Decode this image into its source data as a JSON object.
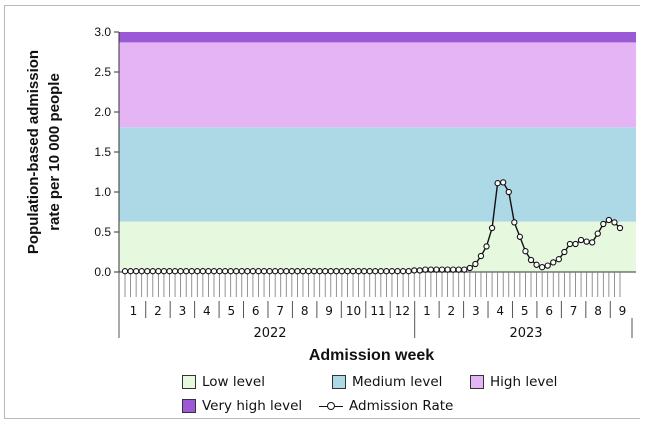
{
  "chart_data": {
    "type": "line",
    "title": "",
    "ylabel": "Population-based admission rate per 10 000 people",
    "xlabel": "Admission week",
    "ylim": [
      0,
      3.0
    ],
    "yticks": [
      "0.0",
      "0.5",
      "1.0",
      "1.5",
      "2.0",
      "2.5",
      "3.0"
    ],
    "grid": false,
    "legend_position": "bottom",
    "bands": [
      {
        "name": "Low level",
        "from": 0.0,
        "to": 0.63,
        "color": "#e6f9df"
      },
      {
        "name": "Medium level",
        "from": 0.63,
        "to": 1.81,
        "color": "#add8e6"
      },
      {
        "name": "High level",
        "from": 1.81,
        "to": 2.87,
        "color": "#e5b4f5"
      },
      {
        "name": "Very high level",
        "from": 2.87,
        "to": 3.0,
        "color": "#9b59d6"
      }
    ],
    "month_labels_2022": [
      "1",
      "2",
      "3",
      "4",
      "5",
      "6",
      "7",
      "8",
      "9",
      "10",
      "11",
      "12"
    ],
    "month_labels_2023": [
      "1",
      "2",
      "3",
      "4",
      "5",
      "6",
      "7",
      "8",
      "9"
    ],
    "years": [
      "2022",
      "2023"
    ],
    "series": [
      {
        "name": "Admission Rate",
        "color": "#111111",
        "values": [
          0.01,
          0.01,
          0.01,
          0.01,
          0.01,
          0.01,
          0.01,
          0.01,
          0.01,
          0.01,
          0.01,
          0.01,
          0.01,
          0.01,
          0.01,
          0.01,
          0.01,
          0.01,
          0.01,
          0.01,
          0.01,
          0.01,
          0.01,
          0.01,
          0.01,
          0.01,
          0.01,
          0.01,
          0.01,
          0.01,
          0.01,
          0.01,
          0.01,
          0.01,
          0.01,
          0.01,
          0.01,
          0.01,
          0.01,
          0.01,
          0.01,
          0.01,
          0.01,
          0.01,
          0.01,
          0.01,
          0.01,
          0.01,
          0.01,
          0.01,
          0.01,
          0.01,
          0.02,
          0.02,
          0.03,
          0.03,
          0.03,
          0.03,
          0.03,
          0.03,
          0.03,
          0.03,
          0.05,
          0.1,
          0.2,
          0.32,
          0.55,
          1.11,
          1.12,
          1.0,
          0.62,
          0.44,
          0.26,
          0.15,
          0.09,
          0.06,
          0.08,
          0.12,
          0.16,
          0.25,
          0.35,
          0.35,
          0.4,
          0.38,
          0.37,
          0.48,
          0.6,
          0.65,
          0.62,
          0.55
        ]
      }
    ]
  },
  "legend": {
    "low": "Low level",
    "medium": "Medium level",
    "high": "High level",
    "very_high": "Very high level",
    "rate": "Admission Rate"
  }
}
